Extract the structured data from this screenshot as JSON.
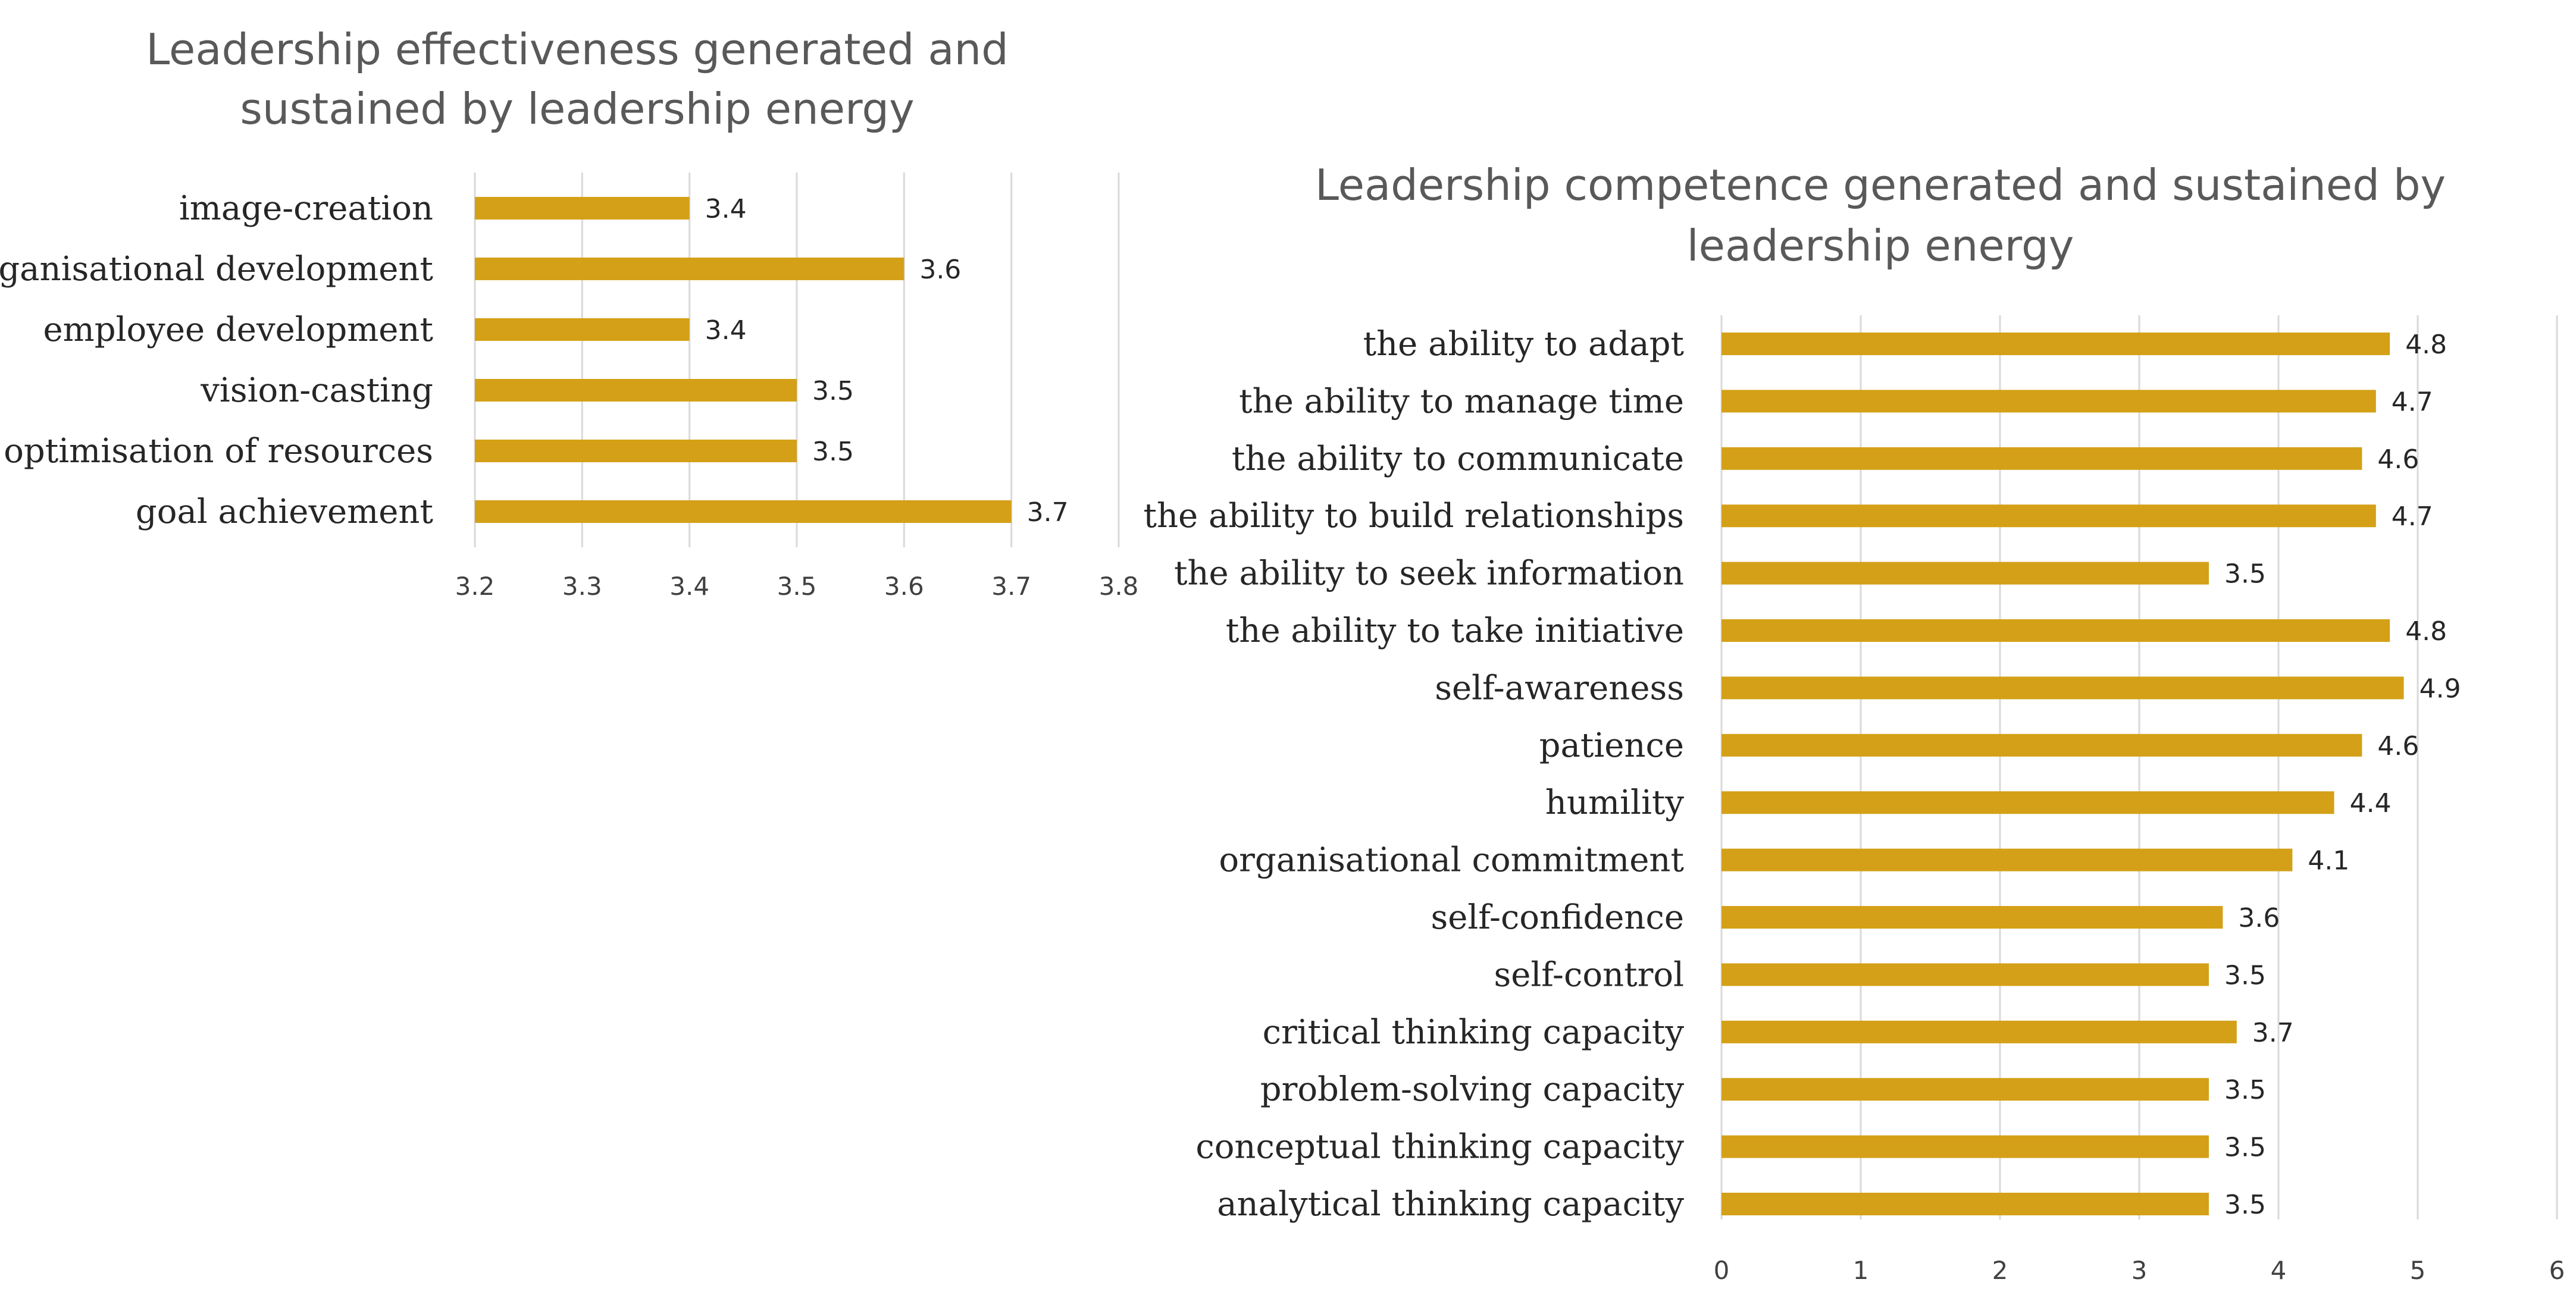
{
  "chart_data": [
    {
      "type": "bar",
      "orientation": "horizontal",
      "title": "Leadership effectiveness generated and sustained by leadership energy",
      "title_lines": [
        "Leadership effectiveness generated and",
        "sustained by leadership energy"
      ],
      "categories": [
        "image-creation",
        "organisational development",
        "employee development",
        "vision-casting",
        "optimisation of resources",
        "goal achievement"
      ],
      "values": [
        3.4,
        3.6,
        3.4,
        3.5,
        3.5,
        3.7
      ],
      "value_labels": [
        "3.4",
        "3.6",
        "3.4",
        "3.5",
        "3.5",
        "3.7"
      ],
      "xlim": [
        3.2,
        3.8
      ],
      "xticks": [
        "3.2",
        "3.3",
        "3.4",
        "3.5",
        "3.6",
        "3.7",
        "3.8"
      ],
      "xlabel": "",
      "ylabel": "",
      "grid": true,
      "legend": "none",
      "bar_color": "#D4A017"
    },
    {
      "type": "bar",
      "orientation": "horizontal",
      "title": "Leadership competence generated and sustained by leadership energy",
      "title_lines": [
        "Leadership competence generated and sustained by",
        "leadership energy"
      ],
      "categories": [
        "the ability to adapt",
        "the ability to manage time",
        "the ability to communicate",
        "the ability to build relationships",
        "the ability to seek information",
        "the ability to take initiative",
        "self-awareness",
        "patience",
        "humility",
        "organisational commitment",
        "self-confidence",
        "self-control",
        "critical thinking capacity",
        "problem-solving capacity",
        "conceptual thinking capacity",
        "analytical thinking capacity"
      ],
      "values": [
        4.8,
        4.7,
        4.6,
        4.7,
        3.5,
        4.8,
        4.9,
        4.6,
        4.4,
        4.1,
        3.6,
        3.5,
        3.7,
        3.5,
        3.5,
        3.5
      ],
      "value_labels": [
        "4.8",
        "4.7",
        "4.6",
        "4.7",
        "3.5",
        "4.8",
        "4.9",
        "4.6",
        "4.4",
        "4.1",
        "3.6",
        "3.5",
        "3.7",
        "3.5",
        "3.5",
        "3.5"
      ],
      "xlim": [
        0,
        6
      ],
      "xticks": [
        "0",
        "1",
        "2",
        "3",
        "4",
        "5",
        "6"
      ],
      "xlabel": "",
      "ylabel": "",
      "grid": true,
      "legend": "none",
      "bar_color": "#D4A017"
    }
  ]
}
